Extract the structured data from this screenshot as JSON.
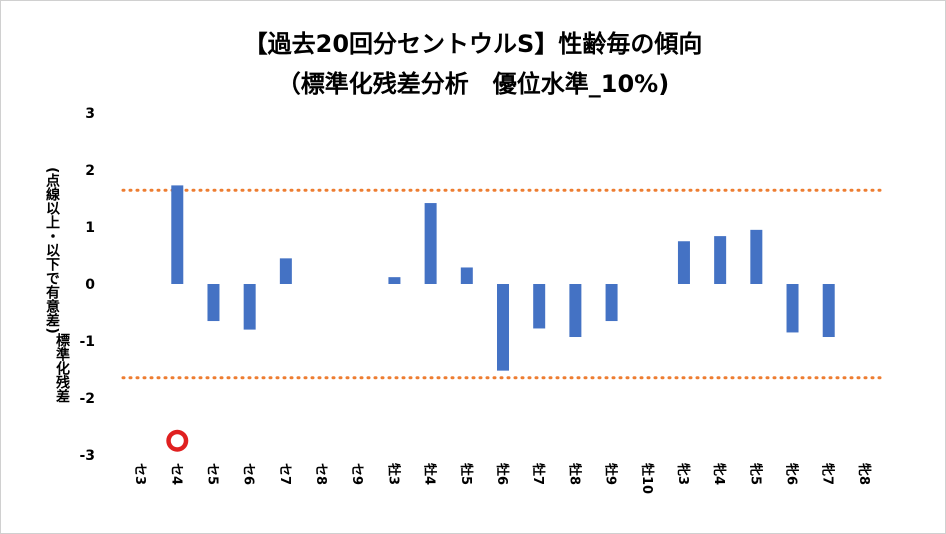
{
  "chart_data": {
    "type": "bar",
    "title": "【過去20回分セントウルS】性齢毎の傾向",
    "subtitle": "（標準化残差分析　優位水準_10%)",
    "ylabel_main": "標準化残差",
    "ylabel_note": "(点線以上・以下で有意差)",
    "ylim": [
      -3,
      3
    ],
    "yticks": [
      3,
      2,
      1,
      0,
      -1,
      -2,
      -3
    ],
    "grid": false,
    "categories": [
      "セ3",
      "セ4",
      "セ5",
      "セ6",
      "セ7",
      "セ8",
      "セ9",
      "牡3",
      "牡4",
      "牡5",
      "牡6",
      "牡7",
      "牡8",
      "牡9",
      "牡10",
      "牝3",
      "牝4",
      "牝5",
      "牝6",
      "牝7",
      "牝8"
    ],
    "values": [
      0,
      1.73,
      -0.65,
      -0.8,
      0.45,
      0,
      0,
      0.12,
      1.42,
      0.29,
      -1.52,
      -0.78,
      -0.93,
      -0.65,
      0,
      0.75,
      0.84,
      0.95,
      -0.85,
      -0.93,
      0
    ],
    "threshold_lines": [
      1.645,
      -1.645
    ],
    "bar_color": "#4472C4",
    "threshold_color": "#ED7D31",
    "highlight_marker": {
      "category": "セ4",
      "y": -2.75,
      "color": "#E02020"
    }
  }
}
